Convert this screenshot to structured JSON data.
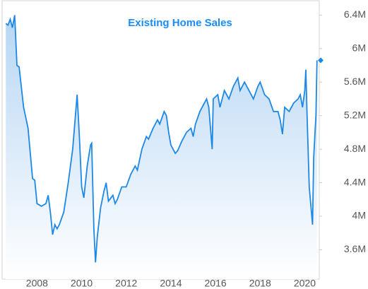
{
  "chart_data": {
    "type": "line",
    "title": "Existing Home Sales",
    "color": "#1e88e5",
    "x": [
      2006.6,
      2006.7,
      2006.8,
      2006.9,
      2007.0,
      2007.1,
      2007.2,
      2007.4,
      2007.6,
      2007.8,
      2007.9,
      2008.0,
      2008.2,
      2008.4,
      2008.5,
      2008.6,
      2008.7,
      2008.8,
      2008.9,
      2009.0,
      2009.2,
      2009.4,
      2009.6,
      2009.8,
      2009.9,
      2010.0,
      2010.1,
      2010.25,
      2010.4,
      2010.45,
      2010.55,
      2010.62,
      2010.7,
      2010.85,
      2011.0,
      2011.1,
      2011.2,
      2011.4,
      2011.5,
      2011.6,
      2011.8,
      2012.0,
      2012.2,
      2012.4,
      2012.5,
      2012.7,
      2012.9,
      2013.0,
      2013.2,
      2013.4,
      2013.5,
      2013.7,
      2013.8,
      2013.9,
      2014.0,
      2014.2,
      2014.3,
      2014.5,
      2014.7,
      2014.9,
      2015.0,
      2015.1,
      2015.3,
      2015.5,
      2015.6,
      2015.7,
      2015.85,
      2015.9,
      2016.1,
      2016.2,
      2016.4,
      2016.6,
      2016.8,
      2017.0,
      2017.1,
      2017.3,
      2017.5,
      2017.7,
      2017.9,
      2018.0,
      2018.2,
      2018.4,
      2018.6,
      2018.8,
      2018.9,
      2019.0,
      2019.1,
      2019.3,
      2019.5,
      2019.7,
      2019.8,
      2019.9,
      2020.0,
      2020.05,
      2020.1,
      2020.2,
      2020.35,
      2020.4,
      2020.5,
      2020.55
    ],
    "values": [
      6300000,
      6280000,
      6350000,
      6250000,
      6400000,
      5800000,
      5780000,
      5300000,
      5050000,
      4450000,
      4430000,
      4150000,
      4120000,
      4150000,
      4250000,
      4050000,
      3780000,
      3900000,
      3850000,
      3900000,
      4050000,
      4400000,
      4800000,
      5450000,
      4950000,
      4350000,
      4220000,
      4600000,
      4850000,
      4870000,
      3850000,
      3450000,
      3750000,
      4100000,
      4300000,
      4400000,
      4180000,
      4250000,
      4150000,
      4200000,
      4350000,
      4350000,
      4500000,
      4600000,
      4550000,
      4800000,
      4950000,
      4920000,
      5050000,
      5150000,
      5100000,
      5250000,
      5200000,
      5000000,
      4850000,
      4750000,
      4780000,
      4900000,
      5000000,
      5050000,
      4950000,
      5100000,
      5250000,
      5350000,
      5400000,
      5300000,
      4800000,
      5400000,
      5450000,
      5300000,
      5500000,
      5400000,
      5550000,
      5650000,
      5500000,
      5600000,
      5500000,
      5400000,
      5550000,
      5600000,
      5450000,
      5400000,
      5250000,
      5250000,
      5150000,
      4980000,
      5300000,
      5250000,
      5350000,
      5400000,
      5450000,
      5300000,
      5500000,
      5750000,
      5250000,
      4350000,
      3900000,
      4700000,
      5200000,
      5860000
    ],
    "xlim": [
      2006.5,
      2020.65
    ],
    "xticks": [
      2008,
      2010,
      2012,
      2014,
      2016,
      2018,
      2020
    ],
    "ylim": [
      3250000,
      6580000
    ],
    "yticks": [
      {
        "value": 3600000,
        "label": "3.6M"
      },
      {
        "value": 4000000,
        "label": "4M"
      },
      {
        "value": 4400000,
        "label": "4.4M"
      },
      {
        "value": 4800000,
        "label": "4.8M"
      },
      {
        "value": 5200000,
        "label": "5.2M"
      },
      {
        "value": 5600000,
        "label": "5.6M"
      },
      {
        "value": 6000000,
        "label": "6M"
      },
      {
        "value": 6400000,
        "label": "6.4M"
      }
    ]
  }
}
